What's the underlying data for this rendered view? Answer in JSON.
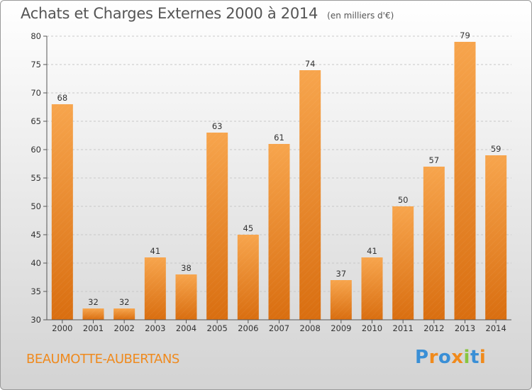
{
  "header": {
    "title": "Achats et Charges Externes 2000 à 2014",
    "subtitle": "(en milliers d'€)"
  },
  "footer": {
    "place": "BEAUMOTTE-AUBERTANS",
    "brand": "Proxiti"
  },
  "colors": {
    "bar_top": "#f7a54d",
    "bar_bottom": "#d96e10",
    "place_text": "#ef8a1e",
    "brand_letters": [
      "#3a8fd6",
      "#f08a1c",
      "#3a8fd6",
      "#f08a1c",
      "#88c540",
      "#3a8fd6",
      "#f08a1c"
    ]
  },
  "chart_data": {
    "type": "bar",
    "categories": [
      "2000",
      "2001",
      "2002",
      "2003",
      "2004",
      "2005",
      "2006",
      "2007",
      "2008",
      "2009",
      "2010",
      "2011",
      "2012",
      "2013",
      "2014"
    ],
    "values": [
      68,
      32,
      32,
      41,
      38,
      63,
      45,
      61,
      74,
      37,
      41,
      50,
      57,
      79,
      59
    ],
    "title": "Achats et Charges Externes 2000 à 2014",
    "subtitle": "(en milliers d'€)",
    "xlabel": "",
    "ylabel": "",
    "ylim": [
      30,
      80
    ],
    "yticks": [
      30,
      35,
      40,
      45,
      50,
      55,
      60,
      65,
      70,
      75,
      80
    ],
    "grid": true,
    "data_labels": true
  }
}
